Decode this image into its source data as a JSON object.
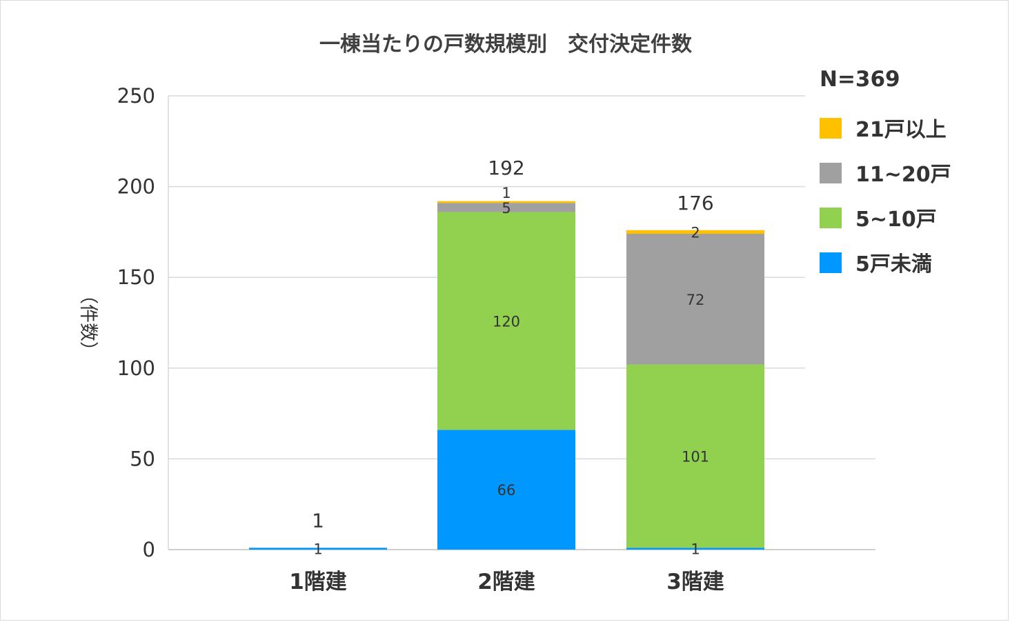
{
  "chart_data": {
    "type": "bar",
    "stacked": true,
    "title": "一棟当たりの戸数規模別　交付決定件数",
    "ylabel": "（件数）",
    "xlabel": "",
    "ylim": [
      0,
      250
    ],
    "yticks": [
      0,
      50,
      100,
      150,
      200,
      250
    ],
    "grid": true,
    "legend_position": "right",
    "note": "N=369",
    "categories": [
      "1階建",
      "2階建",
      "3階建"
    ],
    "series": [
      {
        "name": "5戸未満",
        "color": "#0098FF",
        "values": [
          1,
          66,
          1
        ]
      },
      {
        "name": "5~10戸",
        "color": "#92D050",
        "values": [
          null,
          120,
          101
        ]
      },
      {
        "name": "11~20戸",
        "color": "#A0A0A0",
        "values": [
          null,
          5,
          72
        ]
      },
      {
        "name": "21戸以上",
        "color": "#FFC000",
        "values": [
          null,
          1,
          2
        ]
      }
    ],
    "totals": [
      1,
      192,
      176
    ]
  }
}
